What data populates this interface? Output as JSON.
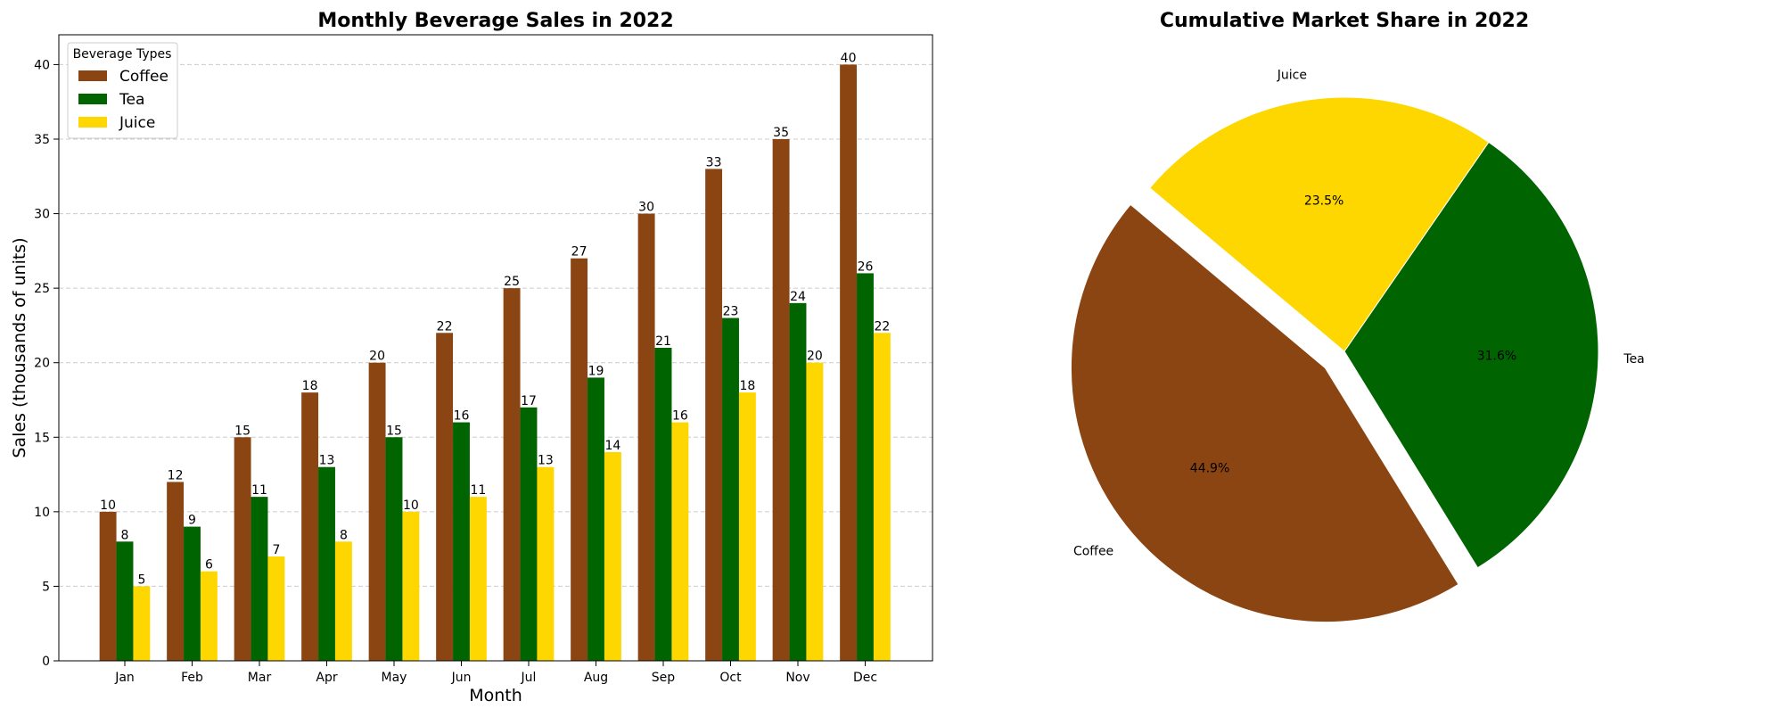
{
  "chart_data": [
    {
      "type": "bar",
      "title": "Monthly Beverage Sales in 2022",
      "xlabel": "Month",
      "ylabel": "Sales (thousands of units)",
      "ylim": [
        0,
        42
      ],
      "yticks": [
        "0",
        "5",
        "10",
        "15",
        "20",
        "25",
        "30",
        "35",
        "40"
      ],
      "grid": "y-dashed",
      "legend": {
        "title": "Beverage Types",
        "placement": "top-left"
      },
      "categories": [
        "Jan",
        "Feb",
        "Mar",
        "Apr",
        "May",
        "Jun",
        "Jul",
        "Aug",
        "Sep",
        "Oct",
        "Nov",
        "Dec"
      ],
      "series": [
        {
          "name": "Coffee",
          "color": "#8b4513",
          "values": [
            10,
            12,
            15,
            18,
            20,
            22,
            25,
            27,
            30,
            33,
            35,
            40
          ]
        },
        {
          "name": "Tea",
          "color": "#006400",
          "values": [
            8,
            9,
            11,
            13,
            15,
            16,
            17,
            19,
            21,
            23,
            24,
            26
          ]
        },
        {
          "name": "Juice",
          "color": "#ffd700",
          "values": [
            5,
            6,
            7,
            8,
            10,
            11,
            13,
            14,
            16,
            18,
            20,
            22
          ]
        }
      ]
    },
    {
      "type": "pie",
      "title": "Cumulative Market Share in 2022",
      "slices": [
        {
          "label": "Coffee",
          "value": 44.9,
          "pct_label": "44.9%",
          "color": "#8b4513",
          "exploded": true
        },
        {
          "label": "Tea",
          "value": 31.6,
          "pct_label": "31.6%",
          "color": "#006400",
          "exploded": false
        },
        {
          "label": "Juice",
          "value": 23.5,
          "pct_label": "23.5%",
          "color": "#ffd700",
          "exploded": false
        }
      ]
    }
  ]
}
